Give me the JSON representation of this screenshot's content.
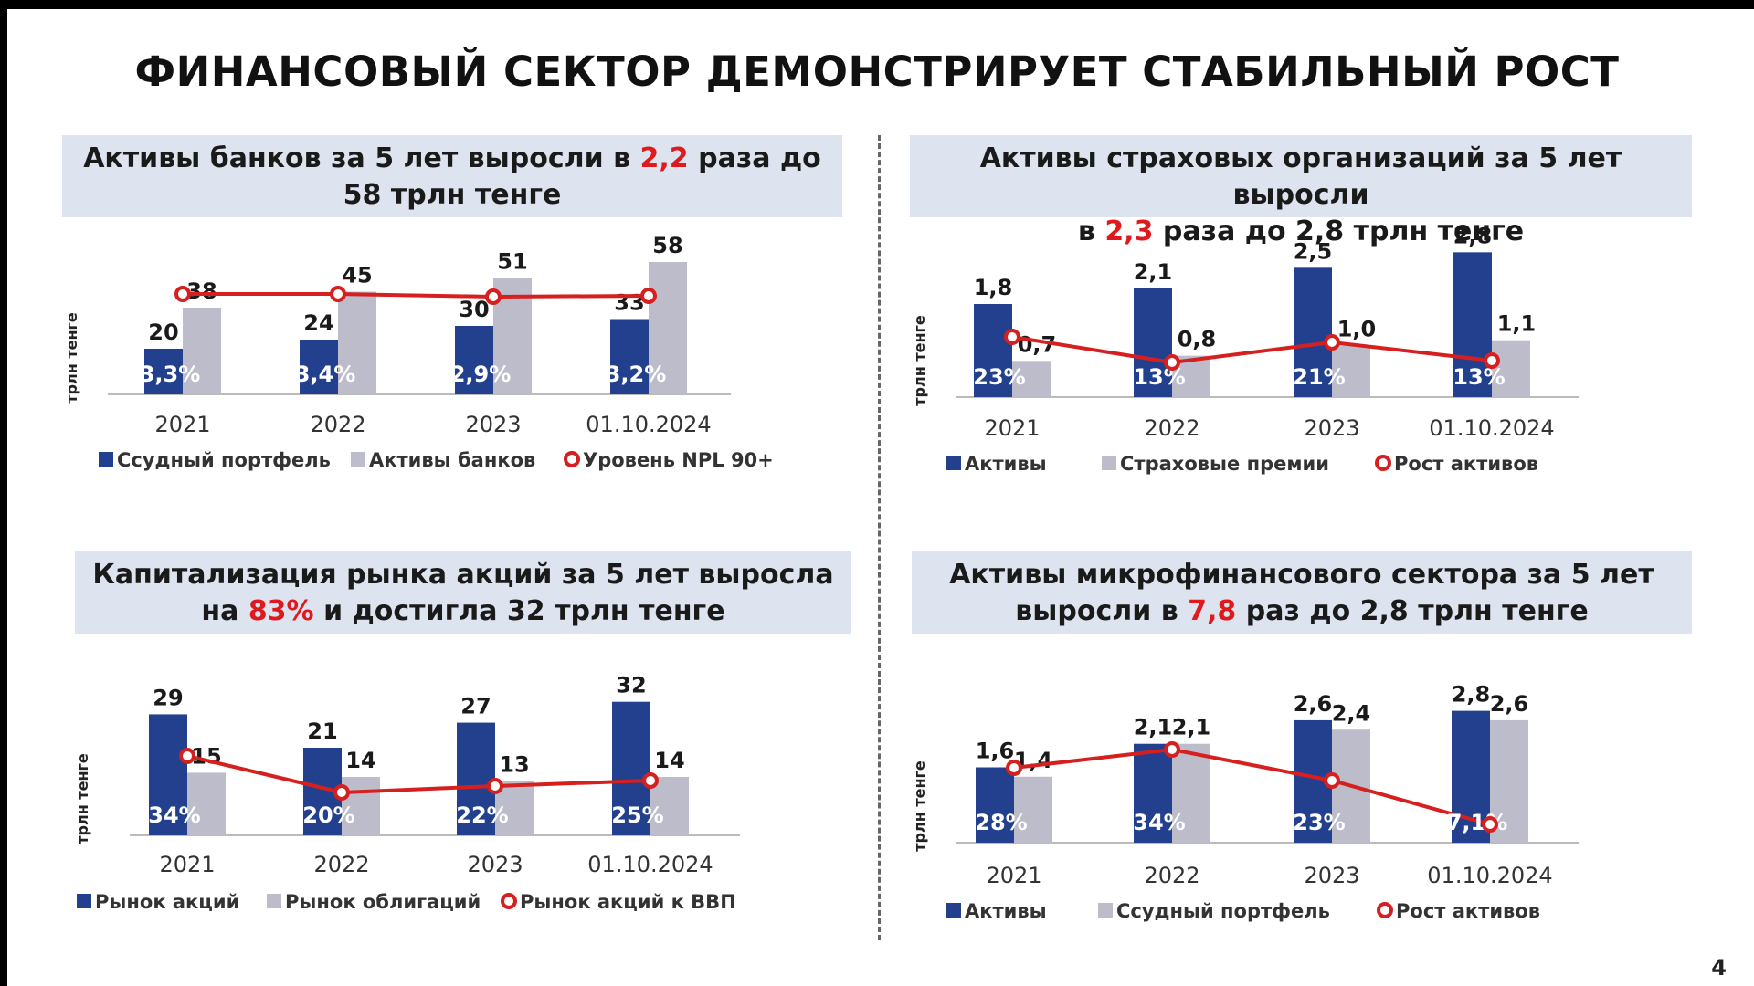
{
  "title": "ФИНАНСОВЫЙ СЕКТОР ДЕМОНСТРИРУЕТ СТАБИЛЬНЫЙ РОСТ",
  "page_number": "4",
  "colors": {
    "dark": "#23408e",
    "light": "#bcbccb",
    "line": "#d61f1f",
    "title_bg": "#dde4f0"
  },
  "panels": [
    {
      "line1_pre": "Активы банков за 5 лет выросли в ",
      "line1_hl": "2,2",
      "line1_post": " раза до",
      "line2_pre": "58 трлн тенге",
      "line2_hl": "",
      "line2_post": ""
    },
    {
      "line1_pre": "Активы страховых организаций за 5 лет выросли",
      "line1_hl": "",
      "line1_post": "",
      "line2_pre": "в ",
      "line2_hl": "2,3",
      "line2_post": " раза до 2,8 трлн тенге"
    },
    {
      "line1_pre": "Капитализация рынка акций за 5 лет выросла",
      "line1_hl": "",
      "line1_post": "",
      "line2_pre": "на ",
      "line2_hl": "83%",
      "line2_post": " и достигла 32 трлн тенге"
    },
    {
      "line1_pre": "Активы микрофинансового сектора за 5 лет",
      "line1_hl": "",
      "line1_post": "",
      "line2_pre": "выросли в ",
      "line2_hl": "7,8",
      "line2_post": " раз до 2,8 трлн тенге"
    }
  ],
  "chart_data": [
    {
      "type": "bar",
      "ylabel": "трлн тенге",
      "categories": [
        "2021",
        "2022",
        "2023",
        "01.10.2024"
      ],
      "series": [
        {
          "name": "Ссудный портфель",
          "kind": "bar",
          "values": [
            20,
            24,
            30,
            33
          ],
          "labels": [
            "20",
            "24",
            "30",
            "33"
          ]
        },
        {
          "name": "Активы банков",
          "kind": "bar",
          "values": [
            38,
            45,
            51,
            58
          ],
          "labels": [
            "38",
            "45",
            "51",
            "58"
          ]
        },
        {
          "name": "Уровень NPL 90+",
          "kind": "line",
          "values": [
            3.3,
            3.4,
            2.9,
            3.2
          ],
          "labels": [
            "3,3%",
            "3,4%",
            "2,9%",
            "3,2%"
          ]
        }
      ]
    },
    {
      "type": "bar",
      "ylabel": "трлн тенге",
      "categories": [
        "2021",
        "2022",
        "2023",
        "01.10.2024"
      ],
      "series": [
        {
          "name": "Активы",
          "kind": "bar",
          "values": [
            1.8,
            2.1,
            2.5,
            2.8
          ],
          "labels": [
            "1,8",
            "2,1",
            "2,5",
            "2,8"
          ]
        },
        {
          "name": "Страховые премии",
          "kind": "bar",
          "values": [
            0.7,
            0.8,
            1.0,
            1.1
          ],
          "labels": [
            "0,7",
            "0,8",
            "1,0",
            "1,1"
          ]
        },
        {
          "name": "Рост активов",
          "kind": "line",
          "values": [
            23,
            13,
            21,
            13
          ],
          "labels": [
            "23%",
            "13%",
            "21%",
            "13%"
          ]
        }
      ]
    },
    {
      "type": "bar",
      "ylabel": "трлн тенге",
      "categories": [
        "2021",
        "2022",
        "2023",
        "01.10.2024"
      ],
      "series": [
        {
          "name": "Рынок акций",
          "kind": "bar",
          "values": [
            29,
            21,
            27,
            32
          ],
          "labels": [
            "29",
            "21",
            "27",
            "32"
          ]
        },
        {
          "name": "Рынок облигаций",
          "kind": "bar",
          "values": [
            15,
            14,
            13,
            14
          ],
          "labels": [
            "15",
            "14",
            "13",
            "14"
          ]
        },
        {
          "name": "Рынок акций к ВВП",
          "kind": "line",
          "values": [
            34,
            20,
            22,
            25
          ],
          "labels": [
            "34%",
            "20%",
            "22%",
            "25%"
          ]
        }
      ]
    },
    {
      "type": "bar",
      "ylabel": "трлн тенге",
      "categories": [
        "2021",
        "2022",
        "2023",
        "01.10.2024"
      ],
      "series": [
        {
          "name": "Активы",
          "kind": "bar",
          "values": [
            1.6,
            2.1,
            2.6,
            2.8
          ],
          "labels": [
            "1,6",
            "2,1",
            "2,6",
            "2,8"
          ]
        },
        {
          "name": "Ссудный портфель",
          "kind": "bar",
          "values": [
            1.4,
            2.1,
            2.4,
            2.6
          ],
          "labels": [
            "1,4",
            "2,1",
            "2,4",
            "2,6"
          ]
        },
        {
          "name": "Рост активов",
          "kind": "line",
          "values": [
            28,
            34,
            23,
            7.1
          ],
          "labels": [
            "28%",
            "34%",
            "23%",
            "7,1%"
          ]
        }
      ]
    }
  ]
}
